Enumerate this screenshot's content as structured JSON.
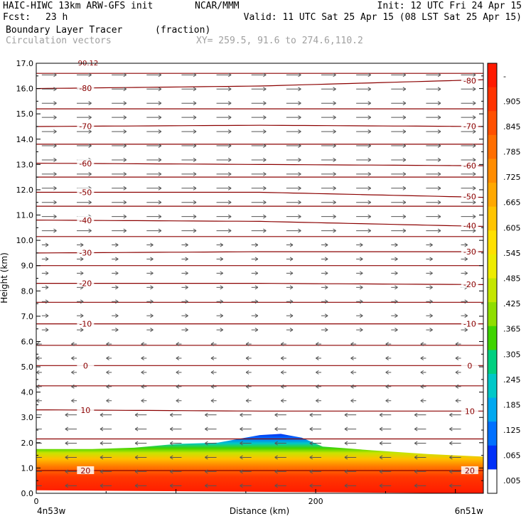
{
  "header": {
    "model": "HAIC-HIWC 13km ARW-GFS init",
    "org": "NCAR/MMM",
    "init": "Init: 12 UTC Fri 24 Apr 15",
    "fcst_label": "Fcst:",
    "fcst_value": "23 h",
    "valid": "Valid: 11 UTC Sat 25 Apr 15 (08 LST Sat 25 Apr 15)",
    "field1": "Boundary Layer Tracer",
    "field1_units": "(fraction)",
    "field2": "Circulation vectors",
    "xy": "XY= 259.5, 91.6 to 274.6,110.2"
  },
  "chart_data": {
    "type": "heatmap",
    "xlabel": "Distance (km)",
    "ylabel": "Height (km)",
    "xlim": [
      0,
      320
    ],
    "ylim": [
      0,
      17
    ],
    "xticks": [
      {
        "value": 0,
        "label": "0"
      },
      {
        "value": 200,
        "label": "200"
      }
    ],
    "yticks": [
      "0.0",
      "1.0",
      "2.0",
      "3.0",
      "4.0",
      "5.0",
      "6.0",
      "7.0",
      "8.0",
      "9.0",
      "10.0",
      "11.0",
      "12.0",
      "13.0",
      "14.0",
      "15.0",
      "16.0",
      "17.0"
    ],
    "left_endpoint": "4n53w",
    "right_endpoint": "6n51w",
    "colorbar": {
      "labels": [
        "-",
        ".905",
        ".845",
        ".785",
        ".725",
        ".665",
        ".605",
        ".545",
        ".485",
        ".425",
        ".365",
        ".305",
        ".245",
        ".185",
        ".125",
        ".065",
        ".005"
      ],
      "colors": [
        "#ff1a00",
        "#ff3300",
        "#ff5000",
        "#ff6e00",
        "#ff8c00",
        "#ffa800",
        "#ffc400",
        "#ffe000",
        "#eeec00",
        "#c4e600",
        "#8fde00",
        "#3fd400",
        "#00d080",
        "#00c8c8",
        "#00a8f0",
        "#0070ff",
        "#0030f8",
        "#ffffff"
      ]
    },
    "tracer_top_km": [
      [
        0,
        1.75
      ],
      [
        40,
        1.75
      ],
      [
        70,
        1.8
      ],
      [
        100,
        1.95
      ],
      [
        130,
        2.0
      ],
      [
        160,
        2.3
      ],
      [
        175,
        2.35
      ],
      [
        190,
        2.2
      ],
      [
        205,
        1.85
      ],
      [
        240,
        1.7
      ],
      [
        280,
        1.55
      ],
      [
        320,
        1.45
      ]
    ],
    "isotherms_c": [
      {
        "label": "-80",
        "heights_km": [
          16.0,
          16.1,
          16.35
        ]
      },
      {
        "label": "-70",
        "heights_km": [
          14.5,
          14.55,
          14.5
        ]
      },
      {
        "label": "-60",
        "heights_km": [
          13.05,
          13.0,
          12.95
        ]
      },
      {
        "label": "-50",
        "heights_km": [
          11.9,
          11.9,
          11.7
        ]
      },
      {
        "label": "-40",
        "heights_km": [
          10.8,
          10.75,
          10.55
        ]
      },
      {
        "label": "-30",
        "heights_km": [
          9.5,
          9.55,
          9.55
        ]
      },
      {
        "label": "-20",
        "heights_km": [
          8.3,
          8.3,
          8.25
        ]
      },
      {
        "label": "-10",
        "heights_km": [
          6.7,
          6.7,
          6.7
        ]
      },
      {
        "label": "0",
        "heights_km": [
          5.05,
          5.05,
          5.05
        ]
      },
      {
        "label": "10",
        "heights_km": [
          3.3,
          3.25,
          3.25
        ]
      },
      {
        "label": "20",
        "heights_km": [
          0.9,
          0.9,
          0.9
        ]
      }
    ],
    "extra_isotherms_km": [
      16.6,
      15.2,
      13.8,
      12.5,
      11.35,
      10.15,
      9.0,
      7.55,
      5.85,
      4.25,
      2.15
    ],
    "tropopause_label": "-90.12",
    "upper_wind_u": 0.8,
    "lower_wind_u": -0.6
  }
}
